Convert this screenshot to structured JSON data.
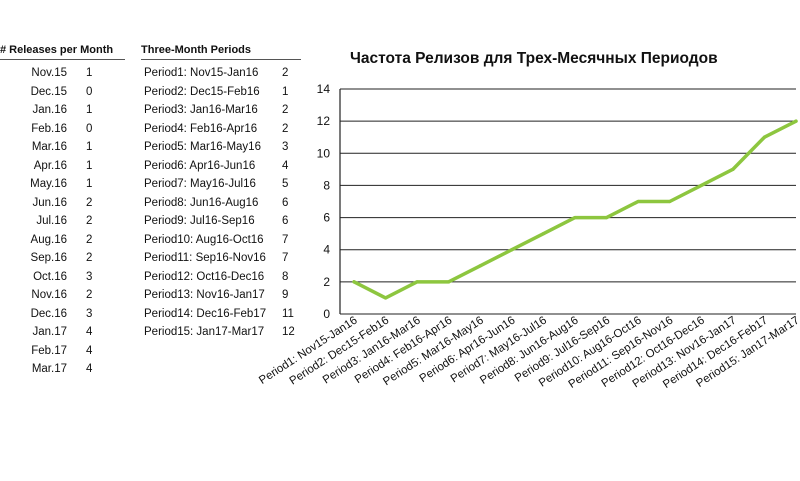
{
  "monthly_table": {
    "header": "# Releases per Month",
    "rows": [
      {
        "month": "Nov.15",
        "count": "1"
      },
      {
        "month": "Dec.15",
        "count": "0"
      },
      {
        "month": "Jan.16",
        "count": "1"
      },
      {
        "month": "Feb.16",
        "count": "0"
      },
      {
        "month": "Mar.16",
        "count": "1"
      },
      {
        "month": "Apr.16",
        "count": "1"
      },
      {
        "month": "May.16",
        "count": "1"
      },
      {
        "month": "Jun.16",
        "count": "2"
      },
      {
        "month": "Jul.16",
        "count": "2"
      },
      {
        "month": "Aug.16",
        "count": "2"
      },
      {
        "month": "Sep.16",
        "count": "2"
      },
      {
        "month": "Oct.16",
        "count": "3"
      },
      {
        "month": "Nov.16",
        "count": "2"
      },
      {
        "month": "Dec.16",
        "count": "3"
      },
      {
        "month": "Jan.17",
        "count": "4"
      },
      {
        "month": "Feb.17",
        "count": "4"
      },
      {
        "month": "Mar.17",
        "count": "4"
      }
    ]
  },
  "period_table": {
    "header": "Three-Month Periods",
    "rows": [
      {
        "period": "Period1: Nov15-Jan16",
        "count": "2"
      },
      {
        "period": "Period2: Dec15-Feb16",
        "count": "1"
      },
      {
        "period": "Period3: Jan16-Mar16",
        "count": "2"
      },
      {
        "period": "Period4: Feb16-Apr16",
        "count": "2"
      },
      {
        "period": "Period5: Mar16-May16",
        "count": "3"
      },
      {
        "period": "Period6: Apr16-Jun16",
        "count": "4"
      },
      {
        "period": "Period7: May16-Jul16",
        "count": "5"
      },
      {
        "period": "Period8: Jun16-Aug16",
        "count": "6"
      },
      {
        "period": "Period9: Jul16-Sep16",
        "count": "6"
      },
      {
        "period": "Period10: Aug16-Oct16",
        "count": "7"
      },
      {
        "period": "Period11: Sep16-Nov16",
        "count": "7"
      },
      {
        "period": "Period12: Oct16-Dec16",
        "count": "8"
      },
      {
        "period": "Period13: Nov16-Jan17",
        "count": "9"
      },
      {
        "period": "Period14: Dec16-Feb17",
        "count": "11"
      },
      {
        "period": "Period15: Jan17-Mar17",
        "count": "12"
      }
    ]
  },
  "chart_data": {
    "type": "line",
    "title": "Частота Релизов для Трех-Месячных Периодов",
    "xlabel": "",
    "ylabel": "",
    "categories": [
      "Period1: Nov15-Jan16",
      "Period2: Dec15-Feb16",
      "Period3: Jan16-Mar16",
      "Period4: Feb16-Apr16",
      "Period5: Mar16-May16",
      "Period6: Apr16-Jun16",
      "Period7: May16-Jul16",
      "Period8: Jun16-Aug16",
      "Period9: Jul16-Sep16",
      "Period10: Aug16-Oct16",
      "Period11: Sep16-Nov16",
      "Period12: Oct16-Dec16",
      "Period13: Nov16-Jan17",
      "Period14: Dec16-Feb17",
      "Period15: Jan17-Mar17"
    ],
    "series": [
      {
        "values": [
          2,
          1,
          2,
          2,
          3,
          4,
          5,
          6,
          6,
          7,
          7,
          8,
          9,
          11,
          12
        ],
        "color": "#8dc63f"
      }
    ],
    "ylim": [
      0,
      14
    ],
    "yticks": [
      0,
      2,
      4,
      6,
      8,
      10,
      12,
      14
    ],
    "grid": true,
    "legend": "none"
  }
}
